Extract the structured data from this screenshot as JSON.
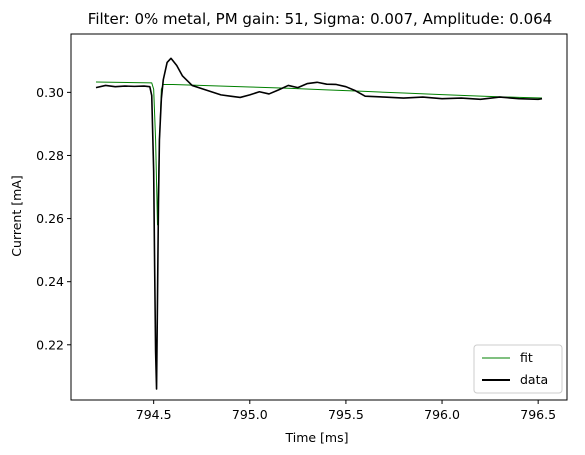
{
  "chart_data": {
    "type": "line",
    "title": "Filter: 0% metal, PM gain: 51, Sigma: 0.007, Amplitude: 0.064",
    "xlabel": "Time [ms]",
    "ylabel": "Current [mA]",
    "xlim": [
      794.07,
      796.65
    ],
    "ylim": [
      0.2025,
      0.3185
    ],
    "xticks": [
      "794.5",
      "795.0",
      "795.5",
      "796.0",
      "796.5"
    ],
    "yticks": [
      "0.22",
      "0.24",
      "0.26",
      "0.28",
      "0.30"
    ],
    "xtick_values": [
      794.5,
      795.0,
      795.5,
      796.0,
      796.5
    ],
    "ytick_values": [
      0.22,
      0.24,
      0.26,
      0.28,
      0.3
    ],
    "grid": false,
    "legend_position": "lower-right",
    "colors": {
      "fit": "#008000",
      "data": "#000000"
    },
    "series": [
      {
        "name": "fit",
        "color": "#008000",
        "x": [
          794.2,
          794.4,
          794.49,
          794.5,
          794.51,
          794.52,
          794.53,
          794.54,
          794.55,
          794.6,
          794.8,
          795.0,
          795.2,
          795.4,
          795.6,
          795.8,
          796.0,
          796.2,
          796.4,
          796.52
        ],
        "y": [
          0.3033,
          0.3031,
          0.303,
          0.301,
          0.285,
          0.258,
          0.285,
          0.301,
          0.3025,
          0.3025,
          0.3021,
          0.3017,
          0.3013,
          0.3008,
          0.3003,
          0.2998,
          0.2993,
          0.2988,
          0.2984,
          0.2982
        ]
      },
      {
        "name": "data",
        "color": "#000000",
        "x": [
          794.2,
          794.25,
          794.3,
          794.35,
          794.4,
          794.45,
          794.48,
          794.49,
          794.5,
          794.505,
          794.51,
          794.515,
          794.52,
          794.525,
          794.53,
          794.54,
          794.55,
          794.57,
          794.59,
          794.62,
          794.65,
          794.7,
          794.75,
          794.8,
          794.85,
          794.9,
          794.95,
          795.0,
          795.05,
          795.1,
          795.15,
          795.2,
          795.25,
          795.3,
          795.35,
          795.4,
          795.45,
          795.5,
          795.55,
          795.6,
          795.7,
          795.8,
          795.9,
          796.0,
          796.1,
          796.2,
          796.3,
          796.4,
          796.5,
          796.52
        ],
        "y": [
          0.3015,
          0.3022,
          0.3018,
          0.302,
          0.3019,
          0.302,
          0.3018,
          0.299,
          0.275,
          0.245,
          0.218,
          0.206,
          0.235,
          0.265,
          0.285,
          0.298,
          0.304,
          0.3095,
          0.3108,
          0.3085,
          0.3052,
          0.3022,
          0.3012,
          0.3002,
          0.2992,
          0.2988,
          0.2984,
          0.2992,
          0.3002,
          0.2995,
          0.3008,
          0.3022,
          0.3015,
          0.3028,
          0.3032,
          0.3026,
          0.3025,
          0.3018,
          0.3005,
          0.2988,
          0.2985,
          0.2982,
          0.2985,
          0.298,
          0.2982,
          0.2978,
          0.2985,
          0.298,
          0.2978,
          0.298
        ]
      }
    ]
  }
}
